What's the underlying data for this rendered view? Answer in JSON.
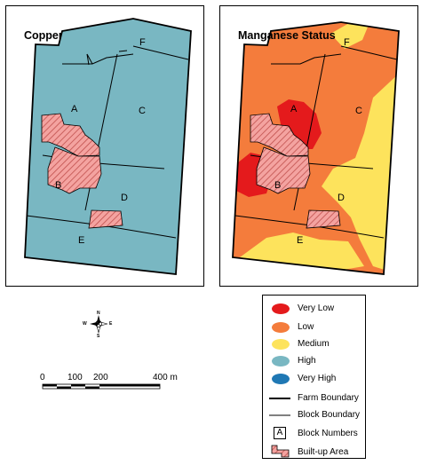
{
  "panels": {
    "copper": {
      "title": "Copper Status",
      "fill_color": "#79b7c2",
      "blocks": {
        "A": "A",
        "B": "B",
        "C": "C",
        "D": "D",
        "E": "E",
        "F": "F"
      }
    },
    "manganese": {
      "title": "Manganese Status",
      "blocks": {
        "A": "A",
        "B": "B",
        "C": "C",
        "D": "D",
        "E": "E",
        "F": "F"
      }
    }
  },
  "colors": {
    "very_low": "#e41a1c",
    "low": "#f47c3c",
    "medium": "#fde35c",
    "high": "#79b7c2",
    "very_high": "#1f78b4",
    "built_up": "#f4a3a0",
    "built_up_hatch": "#c0504d"
  },
  "legend": {
    "items": [
      {
        "label": "Very Low",
        "color": "#e41a1c",
        "kind": "ellipse"
      },
      {
        "label": "Low",
        "color": "#f47c3c",
        "kind": "ellipse"
      },
      {
        "label": "Medium",
        "color": "#fde35c",
        "kind": "ellipse"
      },
      {
        "label": "High",
        "color": "#79b7c2",
        "kind": "ellipse"
      },
      {
        "label": "Very High",
        "color": "#1f78b4",
        "kind": "ellipse"
      },
      {
        "label": "Farm Boundary",
        "kind": "thick-line"
      },
      {
        "label": "Block Boundary",
        "kind": "thin-line"
      },
      {
        "label": "Block Numbers",
        "kind": "letter-box",
        "letter": "A"
      },
      {
        "label": "Built-up Area",
        "kind": "hatch"
      }
    ]
  },
  "scale_bar": {
    "labels": [
      "0",
      "100",
      "200",
      "400 m"
    ]
  },
  "compass": {
    "n": "N",
    "s": "S",
    "e": "E",
    "w": "W"
  }
}
